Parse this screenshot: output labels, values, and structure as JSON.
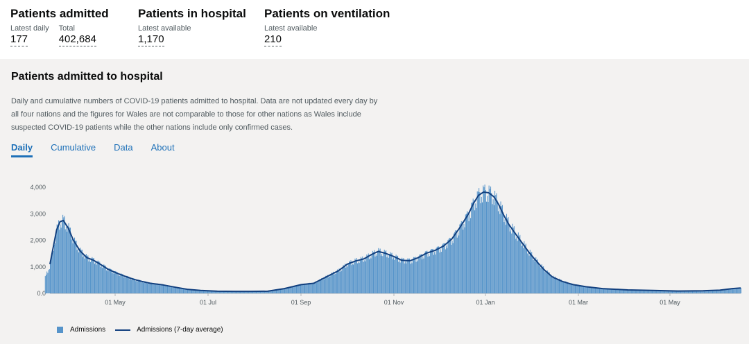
{
  "headline": {
    "admitted": {
      "title": "Patients admitted",
      "latest_label": "Latest daily",
      "latest_value": "177",
      "total_label": "Total",
      "total_value": "402,684"
    },
    "in_hospital": {
      "title": "Patients in hospital",
      "label": "Latest available",
      "value": "1,170"
    },
    "ventilation": {
      "title": "Patients on ventilation",
      "label": "Latest available",
      "value": "210"
    }
  },
  "card": {
    "title": "Patients admitted to hospital",
    "description": "Daily and cumulative numbers of COVID-19 patients admitted to hospital. Data are not updated every day by all four nations and the figures for Wales are not comparable to those for other nations as Wales include suspected COVID-19 patients while the other nations include only confirmed cases.",
    "tabs": [
      {
        "label": "Daily"
      },
      {
        "label": "Cumulative"
      },
      {
        "label": "Data"
      },
      {
        "label": "About"
      }
    ],
    "active_tab": "Daily"
  },
  "chart_data": {
    "type": "bar",
    "ylim": [
      0,
      4000
    ],
    "yticks": [
      "0.0",
      "1,000",
      "2,000",
      "3,000",
      "4,000"
    ],
    "xticks": [
      "01 May",
      "01 Jul",
      "01 Sep",
      "01 Nov",
      "01 Jan",
      "01 Mar",
      "01 May"
    ],
    "colors": {
      "bars": "#5694ca",
      "line": "#12407f"
    },
    "series": [
      {
        "name": "Admissions",
        "type": "bar"
      },
      {
        "name": "Admissions (7-day average)",
        "type": "line",
        "points": [
          [
            0,
            1100
          ],
          [
            8,
            2400
          ],
          [
            12,
            2700
          ],
          [
            16,
            2750
          ],
          [
            22,
            2450
          ],
          [
            28,
            2000
          ],
          [
            36,
            1600
          ],
          [
            44,
            1350
          ],
          [
            52,
            1250
          ],
          [
            60,
            1100
          ],
          [
            70,
            900
          ],
          [
            80,
            760
          ],
          [
            90,
            640
          ],
          [
            100,
            530
          ],
          [
            110,
            450
          ],
          [
            120,
            380
          ],
          [
            135,
            320
          ],
          [
            150,
            230
          ],
          [
            165,
            150
          ],
          [
            180,
            110
          ],
          [
            200,
            80
          ],
          [
            220,
            75
          ],
          [
            240,
            75
          ],
          [
            260,
            80
          ],
          [
            280,
            180
          ],
          [
            300,
            330
          ],
          [
            315,
            380
          ],
          [
            330,
            620
          ],
          [
            345,
            860
          ],
          [
            355,
            1100
          ],
          [
            365,
            1220
          ],
          [
            375,
            1300
          ],
          [
            385,
            1480
          ],
          [
            392,
            1580
          ],
          [
            400,
            1520
          ],
          [
            410,
            1400
          ],
          [
            420,
            1250
          ],
          [
            430,
            1230
          ],
          [
            440,
            1350
          ],
          [
            450,
            1520
          ],
          [
            460,
            1620
          ],
          [
            470,
            1780
          ],
          [
            480,
            2050
          ],
          [
            490,
            2500
          ],
          [
            500,
            3000
          ],
          [
            506,
            3400
          ],
          [
            512,
            3700
          ],
          [
            518,
            3820
          ],
          [
            524,
            3790
          ],
          [
            530,
            3650
          ],
          [
            536,
            3350
          ],
          [
            542,
            2950
          ],
          [
            548,
            2600
          ],
          [
            556,
            2250
          ],
          [
            564,
            1900
          ],
          [
            572,
            1550
          ],
          [
            580,
            1250
          ],
          [
            590,
            900
          ],
          [
            600,
            620
          ],
          [
            612,
            450
          ],
          [
            625,
            330
          ],
          [
            640,
            250
          ],
          [
            660,
            180
          ],
          [
            690,
            130
          ],
          [
            720,
            110
          ],
          [
            750,
            90
          ],
          [
            780,
            100
          ],
          [
            800,
            120
          ],
          [
            815,
            180
          ],
          [
            825,
            200
          ]
        ]
      }
    ],
    "legend": "bottom-left"
  }
}
